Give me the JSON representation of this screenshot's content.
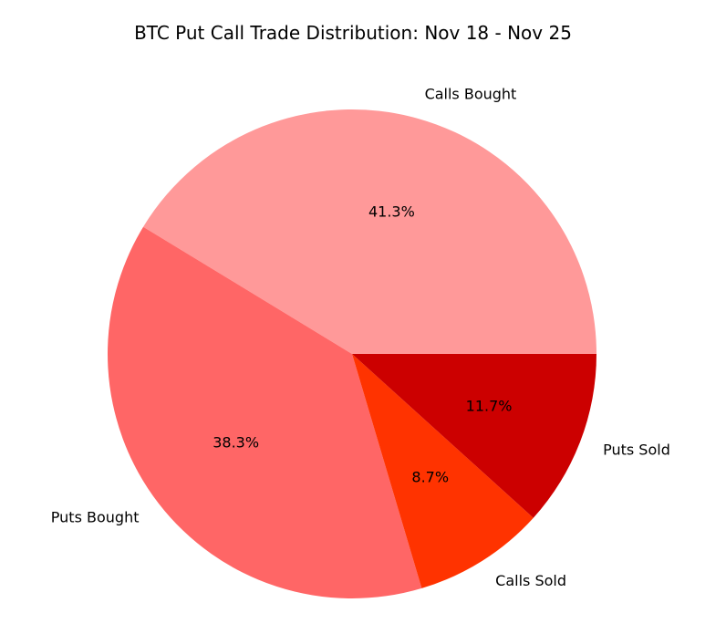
{
  "chart_data": {
    "type": "pie",
    "title": "BTC Put Call Trade Distribution: Nov 18 - Nov 25",
    "slices": [
      {
        "label": "Calls Bought",
        "value": 41.3,
        "pct_label": "41.3%",
        "color": "#ff9999"
      },
      {
        "label": "Puts Bought",
        "value": 38.3,
        "pct_label": "38.3%",
        "color": "#ff6666"
      },
      {
        "label": "Calls Sold",
        "value": 8.7,
        "pct_label": "8.7%",
        "color": "#ff3300"
      },
      {
        "label": "Puts Sold",
        "value": 11.7,
        "pct_label": "11.7%",
        "color": "#cc0000"
      }
    ],
    "start_angle_deg": 0,
    "direction": "counterclockwise"
  }
}
